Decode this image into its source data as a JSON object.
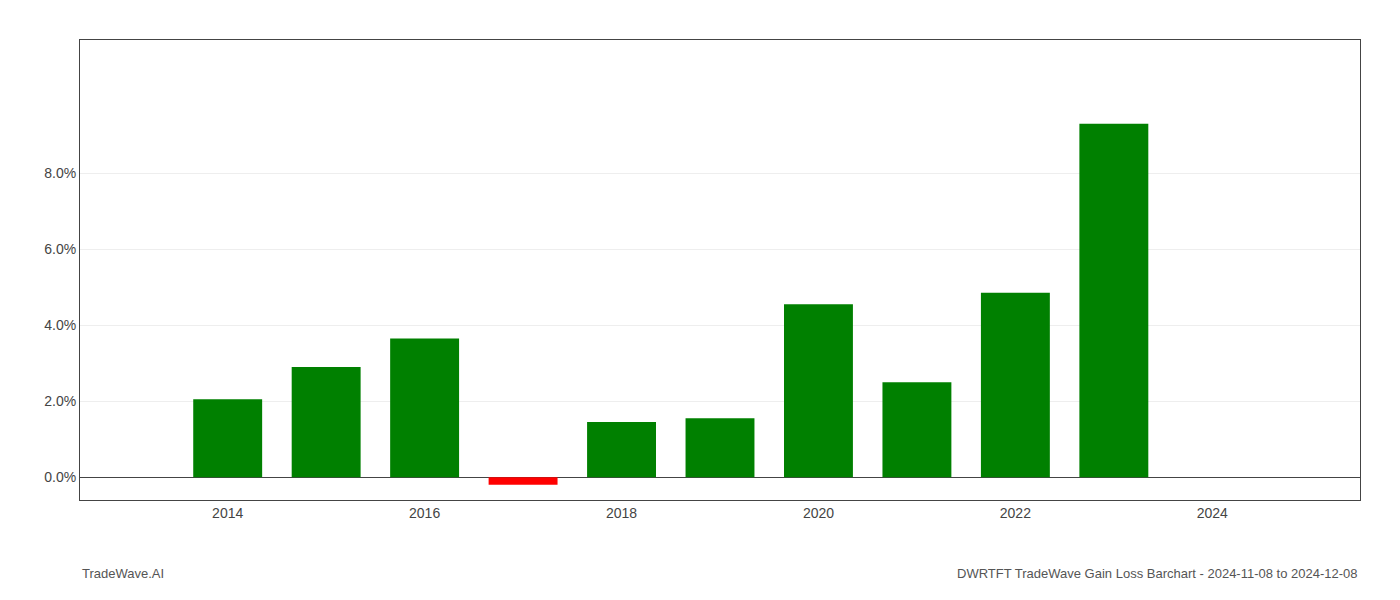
{
  "chart_data": {
    "type": "bar",
    "x": [
      2014,
      2015,
      2016,
      2017,
      2018,
      2019,
      2020,
      2021,
      2022,
      2023
    ],
    "values": [
      0.0205,
      0.029,
      0.0365,
      -0.002,
      0.0145,
      0.0155,
      0.0455,
      0.025,
      0.0485,
      0.093
    ],
    "colors": [
      "#008000",
      "#008000",
      "#008000",
      "#ff0000",
      "#008000",
      "#008000",
      "#008000",
      "#008000",
      "#008000",
      "#008000"
    ],
    "xlim": [
      2012.5,
      2025.5
    ],
    "xticks": [
      2014,
      2016,
      2018,
      2020,
      2022,
      2024
    ],
    "ylim": [
      -0.006,
      0.115
    ],
    "yticks": [
      {
        "value": 0,
        "label": "0.0%"
      },
      {
        "value": 0.02,
        "label": "2.0%"
      },
      {
        "value": 0.04,
        "label": "4.0%"
      },
      {
        "value": 0.06,
        "label": "6.0%"
      },
      {
        "value": 0.08,
        "label": "8.0%"
      }
    ],
    "grid": true,
    "annotations": [
      "TradeWave.AI",
      "DWRTFT TradeWave Gain Loss Barchart - 2024-11-08 to 2024-12-08"
    ]
  }
}
